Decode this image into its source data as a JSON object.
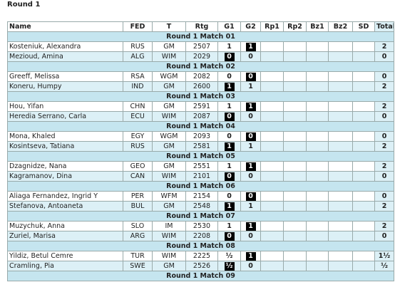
{
  "title": "Round 1",
  "table": {
    "columns": [
      "Name",
      "FED",
      "T",
      "Rtg",
      "G1",
      "G2",
      "Rp1",
      "Rp2",
      "Bz1",
      "Bz2",
      "SD",
      "Total"
    ],
    "matches": [
      {
        "label": "Round 1 Match 01",
        "players": [
          {
            "name": "Kosteniuk, Alexandra",
            "fed": "RUS",
            "t": "GM",
            "rtg": "2507",
            "g1": "1",
            "g1_black": false,
            "g2": "1",
            "g2_black": true,
            "total": "2"
          },
          {
            "name": "Mezioud, Amina",
            "fed": "ALG",
            "t": "WIM",
            "rtg": "2029",
            "g1": "0",
            "g1_black": true,
            "g2": "0",
            "g2_black": false,
            "total": "0"
          }
        ]
      },
      {
        "label": "Round 1 Match 02",
        "players": [
          {
            "name": "Greeff, Melissa",
            "fed": "RSA",
            "t": "WGM",
            "rtg": "2082",
            "g1": "0",
            "g1_black": false,
            "g2": "0",
            "g2_black": true,
            "total": "0"
          },
          {
            "name": "Koneru, Humpy",
            "fed": "IND",
            "t": "GM",
            "rtg": "2600",
            "g1": "1",
            "g1_black": true,
            "g2": "1",
            "g2_black": false,
            "total": "2"
          }
        ]
      },
      {
        "label": "Round 1 Match 03",
        "players": [
          {
            "name": "Hou, Yifan",
            "fed": "CHN",
            "t": "GM",
            "rtg": "2591",
            "g1": "1",
            "g1_black": false,
            "g2": "1",
            "g2_black": true,
            "total": "2"
          },
          {
            "name": "Heredia Serrano, Carla",
            "fed": "ECU",
            "t": "WIM",
            "rtg": "2087",
            "g1": "0",
            "g1_black": true,
            "g2": "0",
            "g2_black": false,
            "total": "0"
          }
        ]
      },
      {
        "label": "Round 1 Match 04",
        "players": [
          {
            "name": "Mona, Khaled",
            "fed": "EGY",
            "t": "WGM",
            "rtg": "2093",
            "g1": "0",
            "g1_black": false,
            "g2": "0",
            "g2_black": true,
            "total": "0"
          },
          {
            "name": "Kosintseva, Tatiana",
            "fed": "RUS",
            "t": "GM",
            "rtg": "2581",
            "g1": "1",
            "g1_black": true,
            "g2": "1",
            "g2_black": false,
            "total": "2"
          }
        ]
      },
      {
        "label": "Round 1 Match 05",
        "players": [
          {
            "name": "Dzagnidze, Nana",
            "fed": "GEO",
            "t": "GM",
            "rtg": "2551",
            "g1": "1",
            "g1_black": false,
            "g2": "1",
            "g2_black": true,
            "total": "2"
          },
          {
            "name": "Kagramanov, Dina",
            "fed": "CAN",
            "t": "WIM",
            "rtg": "2101",
            "g1": "0",
            "g1_black": true,
            "g2": "0",
            "g2_black": false,
            "total": "0"
          }
        ]
      },
      {
        "label": "Round 1 Match 06",
        "players": [
          {
            "name": "Aliaga Fernandez, Ingrid Y",
            "fed": "PER",
            "t": "WFM",
            "rtg": "2154",
            "g1": "0",
            "g1_black": false,
            "g2": "0",
            "g2_black": true,
            "total": "0"
          },
          {
            "name": "Stefanova, Antoaneta",
            "fed": "BUL",
            "t": "GM",
            "rtg": "2548",
            "g1": "1",
            "g1_black": true,
            "g2": "1",
            "g2_black": false,
            "total": "2"
          }
        ]
      },
      {
        "label": "Round 1 Match 07",
        "players": [
          {
            "name": "Muzychuk, Anna",
            "fed": "SLO",
            "t": "IM",
            "rtg": "2530",
            "g1": "1",
            "g1_black": false,
            "g2": "1",
            "g2_black": true,
            "total": "2"
          },
          {
            "name": "Zuriel, Marisa",
            "fed": "ARG",
            "t": "WIM",
            "rtg": "2208",
            "g1": "0",
            "g1_black": true,
            "g2": "0",
            "g2_black": false,
            "total": "0"
          }
        ]
      },
      {
        "label": "Round 1 Match 08",
        "players": [
          {
            "name": "Yildiz, Betul Cemre",
            "fed": "TUR",
            "t": "WIM",
            "rtg": "2225",
            "g1": "½",
            "g1_black": false,
            "g2": "1",
            "g2_black": true,
            "total": "1½"
          },
          {
            "name": "Cramling, Pia",
            "fed": "SWE",
            "t": "GM",
            "rtg": "2526",
            "g1": "½",
            "g1_black": true,
            "g2": "0",
            "g2_black": false,
            "total": "½"
          }
        ]
      },
      {
        "label": "Round 1 Match 09",
        "players": []
      }
    ]
  }
}
